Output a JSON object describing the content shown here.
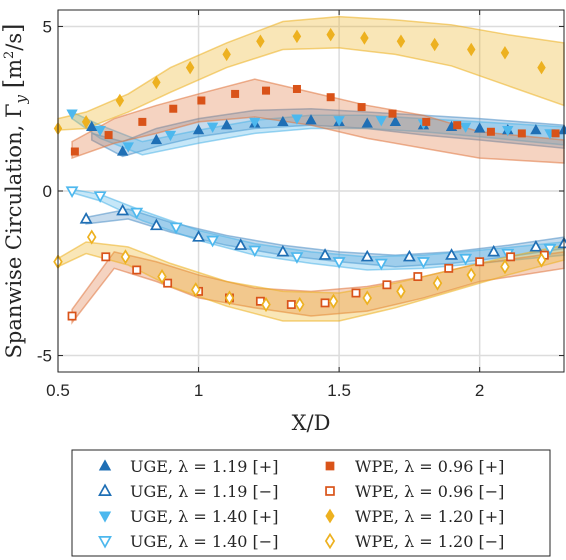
{
  "chart_data": {
    "type": "scatter",
    "xlabel": "X/D",
    "ylabel": "Spanwise Circulation, Γ",
    "ylabel_sub": "y",
    "ylabel_unit_base": "m",
    "ylabel_unit_exp": "2",
    "ylabel_unit_rest": "/s",
    "xlim": [
      0.5,
      2.3
    ],
    "ylim": [
      -5.5,
      5.5
    ],
    "xticks": [
      0.5,
      1,
      1.5,
      2
    ],
    "xtick_labels": [
      "0.5",
      "1",
      "1.5",
      "2"
    ],
    "yticks": [
      -5,
      0,
      5
    ],
    "ytick_labels": [
      "-5",
      "0",
      "5"
    ],
    "grid": true,
    "legend_position": "below",
    "bands": [
      {
        "color": "#4f8fc6",
        "x": [
          0.62,
          0.73,
          0.85,
          1.0,
          1.2,
          1.4,
          1.6,
          1.8,
          2.0,
          2.3
        ],
        "upper": [
          1.75,
          1.5,
          1.9,
          2.2,
          2.45,
          2.5,
          2.4,
          2.3,
          2.2,
          2.0
        ],
        "lower": [
          1.55,
          1.05,
          1.35,
          1.65,
          1.9,
          2.0,
          1.9,
          1.7,
          1.55,
          1.3
        ]
      },
      {
        "color": "#4f8fc6",
        "x": [
          0.6,
          0.75,
          0.9,
          1.1,
          1.3,
          1.5,
          1.7,
          1.9,
          2.1,
          2.3
        ],
        "upper": [
          -0.8,
          -0.55,
          -0.95,
          -1.35,
          -1.65,
          -1.85,
          -1.95,
          -1.85,
          -1.65,
          -1.4
        ],
        "lower": [
          -1.0,
          -0.85,
          -1.25,
          -1.65,
          -1.95,
          -2.15,
          -2.3,
          -2.2,
          -2.0,
          -1.75
        ]
      },
      {
        "color": "#4fb5e8",
        "x": [
          0.55,
          0.65,
          0.8,
          1.0,
          1.2,
          1.4,
          1.6,
          1.8,
          2.0,
          2.3
        ],
        "upper": [
          2.4,
          2.0,
          1.5,
          1.85,
          2.15,
          2.3,
          2.3,
          2.2,
          2.1,
          1.95
        ],
        "lower": [
          2.2,
          1.6,
          1.1,
          1.45,
          1.75,
          1.9,
          1.9,
          1.8,
          1.65,
          1.4
        ]
      },
      {
        "color": "#4fb5e8",
        "x": [
          0.55,
          0.65,
          0.8,
          1.0,
          1.2,
          1.4,
          1.6,
          1.8,
          2.0,
          2.3
        ],
        "upper": [
          0.05,
          -0.1,
          -0.6,
          -1.2,
          -1.6,
          -1.85,
          -2.0,
          -1.95,
          -1.8,
          -1.55
        ],
        "lower": [
          -0.05,
          -0.3,
          -0.9,
          -1.5,
          -1.95,
          -2.2,
          -2.4,
          -2.35,
          -2.2,
          -1.95
        ]
      },
      {
        "color": "#e0773f",
        "x": [
          0.55,
          0.7,
          0.85,
          1.0,
          1.2,
          1.4,
          1.6,
          1.8,
          2.0,
          2.3
        ],
        "upper": [
          1.5,
          2.2,
          2.6,
          2.95,
          3.4,
          3.0,
          2.6,
          2.3,
          1.8,
          1.55
        ],
        "lower": [
          1.0,
          1.45,
          1.75,
          2.1,
          2.25,
          2.0,
          1.6,
          1.3,
          1.0,
          0.85
        ]
      },
      {
        "color": "#e0773f",
        "x": [
          0.55,
          0.7,
          0.85,
          1.0,
          1.2,
          1.4,
          1.6,
          1.8,
          2.0,
          2.3
        ],
        "upper": [
          -3.6,
          -1.85,
          -2.15,
          -2.55,
          -2.95,
          -3.05,
          -2.9,
          -2.6,
          -2.2,
          -1.85
        ],
        "lower": [
          -4.0,
          -2.35,
          -2.75,
          -3.25,
          -3.55,
          -3.8,
          -3.65,
          -3.25,
          -2.75,
          -2.35
        ]
      },
      {
        "color": "#edb120",
        "x": [
          0.5,
          0.6,
          0.75,
          0.9,
          1.1,
          1.3,
          1.5,
          1.7,
          1.9,
          2.1,
          2.3
        ],
        "upper": [
          2.2,
          2.4,
          2.95,
          3.75,
          4.5,
          5.15,
          5.3,
          5.2,
          5.05,
          4.75,
          4.5
        ],
        "lower": [
          1.85,
          1.9,
          2.4,
          3.0,
          3.75,
          4.3,
          4.35,
          4.15,
          3.8,
          3.2,
          2.6
        ]
      },
      {
        "color": "#edb120",
        "x": [
          0.5,
          0.6,
          0.75,
          0.9,
          1.1,
          1.3,
          1.5,
          1.7,
          1.9,
          2.1,
          2.3
        ],
        "upper": [
          -2.05,
          -1.55,
          -1.7,
          -2.2,
          -2.75,
          -3.05,
          -3.1,
          -2.8,
          -2.4,
          -2.0,
          -1.65
        ],
        "lower": [
          -2.3,
          -1.9,
          -2.25,
          -2.9,
          -3.5,
          -3.95,
          -3.95,
          -3.55,
          -3.05,
          -2.55,
          -2.1
        ]
      }
    ],
    "series": [
      {
        "name": "UGE, λ = 1.19 [+]",
        "marker": "triangle-up",
        "filled": true,
        "color": "#1f6fb5",
        "x": [
          0.62,
          0.73,
          0.85,
          1.0,
          1.1,
          1.2,
          1.3,
          1.4,
          1.5,
          1.6,
          1.7,
          1.8,
          1.9,
          2.0,
          2.1,
          2.2,
          2.3
        ],
        "y": [
          1.95,
          1.2,
          1.55,
          1.85,
          2.0,
          2.05,
          2.1,
          2.15,
          2.1,
          2.05,
          2.1,
          2.0,
          1.95,
          1.9,
          1.85,
          1.85,
          1.85
        ]
      },
      {
        "name": "UGE, λ = 1.19 [−]",
        "marker": "triangle-up",
        "filled": false,
        "color": "#1f6fb5",
        "x": [
          0.6,
          0.73,
          0.85,
          1.0,
          1.15,
          1.3,
          1.45,
          1.6,
          1.75,
          1.9,
          2.05,
          2.2,
          2.3
        ],
        "y": [
          -0.85,
          -0.6,
          -1.05,
          -1.4,
          -1.65,
          -1.85,
          -1.95,
          -2.0,
          -2.0,
          -1.95,
          -1.85,
          -1.7,
          -1.6
        ]
      },
      {
        "name": "UGE, λ = 1.40 [+]",
        "marker": "triangle-down",
        "filled": true,
        "color": "#4db8ee",
        "x": [
          0.55,
          0.65,
          0.75,
          0.9,
          1.05,
          1.2,
          1.35,
          1.5,
          1.65,
          1.8,
          1.95,
          2.1,
          2.25
        ],
        "y": [
          2.35,
          1.85,
          1.35,
          1.7,
          1.95,
          2.1,
          2.2,
          2.15,
          2.15,
          2.05,
          1.95,
          1.85,
          1.75
        ]
      },
      {
        "name": "UGE, λ = 1.40 [−]",
        "marker": "triangle-down",
        "filled": false,
        "color": "#4db8ee",
        "x": [
          0.55,
          0.65,
          0.78,
          0.92,
          1.05,
          1.2,
          1.35,
          1.5,
          1.65,
          1.8,
          1.95,
          2.1,
          2.25
        ],
        "y": [
          0.0,
          -0.15,
          -0.65,
          -1.1,
          -1.5,
          -1.8,
          -2.0,
          -2.15,
          -2.2,
          -2.15,
          -2.05,
          -1.9,
          -1.75
        ]
      },
      {
        "name": "WPE, λ = 0.96 [+]",
        "marker": "square",
        "filled": true,
        "color": "#d95319",
        "x": [
          0.56,
          0.68,
          0.8,
          0.91,
          1.01,
          1.13,
          1.24,
          1.35,
          1.47,
          1.58,
          1.69,
          1.81,
          1.92,
          2.04,
          2.15,
          2.27
        ],
        "y": [
          1.2,
          1.7,
          2.1,
          2.5,
          2.75,
          2.95,
          3.05,
          3.1,
          2.85,
          2.55,
          2.35,
          2.1,
          2.0,
          1.8,
          1.75,
          1.75
        ]
      },
      {
        "name": "WPE, λ = 0.96 [−]",
        "marker": "square",
        "filled": false,
        "color": "#d95319",
        "x": [
          0.55,
          0.67,
          0.78,
          0.89,
          1.0,
          1.11,
          1.22,
          1.33,
          1.45,
          1.56,
          1.67,
          1.78,
          1.89,
          2.0,
          2.11,
          2.23
        ],
        "y": [
          -3.8,
          -2.0,
          -2.4,
          -2.8,
          -3.05,
          -3.25,
          -3.35,
          -3.45,
          -3.4,
          -3.1,
          -2.85,
          -2.6,
          -2.35,
          -2.15,
          -2.0,
          -1.95
        ]
      },
      {
        "name": "WPE, λ = 1.20 [+]",
        "marker": "diamond",
        "filled": true,
        "color": "#edb120",
        "x": [
          0.5,
          0.6,
          0.72,
          0.85,
          0.97,
          1.1,
          1.22,
          1.35,
          1.47,
          1.59,
          1.72,
          1.84,
          1.97,
          2.09,
          2.22
        ],
        "y": [
          1.9,
          2.1,
          2.75,
          3.3,
          3.75,
          4.15,
          4.55,
          4.7,
          4.75,
          4.65,
          4.55,
          4.45,
          4.3,
          4.2,
          3.75
        ]
      },
      {
        "name": "WPE, λ = 1.20 [−]",
        "marker": "diamond",
        "filled": false,
        "color": "#edb120",
        "x": [
          0.5,
          0.62,
          0.74,
          0.87,
          0.99,
          1.11,
          1.24,
          1.36,
          1.48,
          1.6,
          1.72,
          1.85,
          1.97,
          2.09,
          2.22
        ],
        "y": [
          -2.15,
          -1.4,
          -2.0,
          -2.6,
          -3.0,
          -3.25,
          -3.45,
          -3.45,
          -3.35,
          -3.25,
          -3.05,
          -2.8,
          -2.55,
          -2.3,
          -2.1
        ]
      }
    ]
  }
}
